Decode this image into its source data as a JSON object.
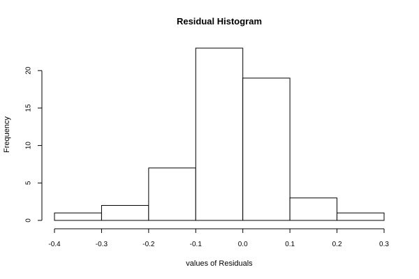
{
  "chart_data": {
    "type": "bar",
    "title": "Residual Histogram",
    "xlabel": "values of Residuals",
    "ylabel": "Frequency",
    "bins": [
      {
        "from": -0.4,
        "to": -0.3,
        "count": 1
      },
      {
        "from": -0.3,
        "to": -0.2,
        "count": 2
      },
      {
        "from": -0.2,
        "to": -0.1,
        "count": 7
      },
      {
        "from": -0.1,
        "to": 0.0,
        "count": 23
      },
      {
        "from": 0.0,
        "to": 0.1,
        "count": 19
      },
      {
        "from": 0.1,
        "to": 0.2,
        "count": 3
      },
      {
        "from": 0.2,
        "to": 0.3,
        "count": 1
      }
    ],
    "xlim": [
      -0.4,
      0.3
    ],
    "ylim": [
      0,
      23
    ],
    "x_ticks": [
      -0.4,
      -0.3,
      -0.2,
      -0.1,
      0.0,
      0.1,
      0.2,
      0.3
    ],
    "x_tick_labels": [
      "-0.4",
      "-0.3",
      "-0.2",
      "-0.1",
      "0.0",
      "0.1",
      "0.2",
      "0.3"
    ],
    "y_ticks": [
      0,
      5,
      10,
      15,
      20
    ],
    "y_tick_labels": [
      "0",
      "5",
      "10",
      "15",
      "20"
    ],
    "grid": false,
    "colors": {
      "bar_fill": "#ffffff",
      "bar_stroke": "#000000"
    }
  }
}
